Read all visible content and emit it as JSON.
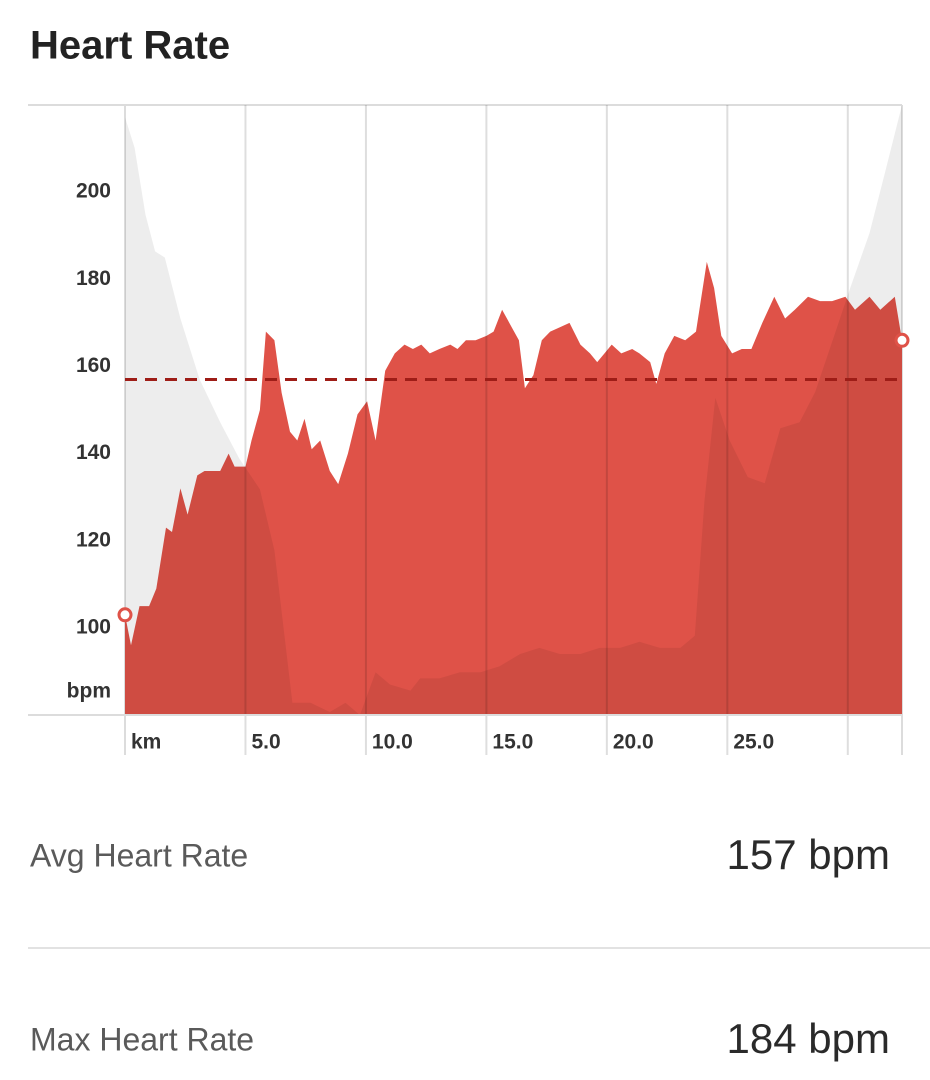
{
  "header": {
    "title": "Heart Rate"
  },
  "chart_data": {
    "type": "area",
    "y_label": "bpm",
    "x_label": "km",
    "xlim": [
      0,
      32.25
    ],
    "xticks": [
      {
        "value": 5,
        "label": "5.0"
      },
      {
        "value": 10,
        "label": "10.0"
      },
      {
        "value": 15,
        "label": "15.0"
      },
      {
        "value": 20,
        "label": "20.0"
      },
      {
        "value": 25,
        "label": "25.0"
      },
      {
        "value": 30,
        "label": null
      }
    ],
    "ylim": [
      80,
      220
    ],
    "yticks": [
      100,
      120,
      140,
      160,
      180,
      200
    ],
    "y2lim": [
      0,
      100
    ],
    "grid": "x",
    "average": 157,
    "average_color": "#9e1d17",
    "series": [
      {
        "color": "#df5248",
        "x": [
          0,
          0.25,
          0.6,
          1.0,
          1.3,
          1.7,
          1.95,
          2.3,
          2.6,
          3.0,
          3.3,
          3.95,
          4.3,
          4.55,
          5.0,
          5.25,
          5.6,
          5.85,
          6.2,
          6.5,
          6.85,
          7.15,
          7.45,
          7.75,
          8.1,
          8.5,
          8.85,
          9.25,
          9.65,
          10.05,
          10.4,
          10.8,
          11.2,
          11.6,
          11.95,
          12.3,
          12.65,
          13.05,
          13.5,
          13.8,
          14.15,
          14.55,
          15.0,
          15.3,
          15.65,
          16.05,
          16.35,
          16.6,
          16.95,
          17.3,
          17.65,
          18.05,
          18.45,
          18.9,
          19.3,
          19.6,
          19.9,
          20.2,
          20.6,
          21.05,
          21.35,
          21.8,
          22.05,
          22.4,
          22.8,
          23.25,
          23.7,
          24.15,
          24.45,
          24.75,
          25.2,
          25.6,
          26.0,
          26.45,
          26.95,
          27.4,
          27.8,
          28.35,
          28.85,
          29.35,
          29.9,
          30.3,
          30.9,
          31.35,
          31.95,
          32.25
        ],
        "values": [
          103,
          96,
          105,
          105,
          109,
          123,
          122,
          132,
          126,
          135,
          136,
          136,
          140,
          137,
          137,
          143,
          150,
          168,
          166,
          154,
          145,
          143,
          148,
          141,
          143,
          136,
          133,
          140,
          149,
          152,
          143,
          159,
          163,
          165,
          164,
          165,
          163,
          164,
          165,
          164,
          166,
          166,
          167,
          168,
          173,
          169,
          166,
          155,
          158,
          166,
          168,
          169,
          170,
          165,
          163,
          161,
          163,
          165,
          163,
          164,
          163,
          161,
          156,
          163,
          167,
          166,
          168,
          184,
          178,
          167,
          163,
          164,
          164,
          170,
          176,
          171,
          173,
          176,
          175,
          175,
          176,
          173,
          176,
          173,
          176,
          166
        ]
      },
      {
        "color": "rgba(0,0,0,0.07)",
        "axis": "y2",
        "x": [
          0,
          0.4,
          0.85,
          1.25,
          1.65,
          2.3,
          3.1,
          3.95,
          4.75,
          5.6,
          6.2,
          6.65,
          6.95,
          7.7,
          8.5,
          9.15,
          9.75,
          10.4,
          11.0,
          11.85,
          12.25,
          13.05,
          13.9,
          14.75,
          15.55,
          16.4,
          17.2,
          18.05,
          18.9,
          19.7,
          20.55,
          21.35,
          22.2,
          23.05,
          23.65,
          24.05,
          24.5,
          25.1,
          25.85,
          26.55,
          27.2,
          28.0,
          28.65,
          29.25,
          30.1,
          30.9,
          31.55,
          32.25
        ],
        "values": [
          98,
          93,
          82,
          76,
          75,
          65,
          55,
          48,
          42,
          37,
          27,
          12,
          2,
          2,
          0.5,
          2,
          0,
          7,
          5,
          4,
          6,
          6,
          7,
          7,
          8,
          10,
          11,
          10,
          10,
          11,
          11,
          12,
          11,
          11,
          13,
          35,
          52,
          45,
          39,
          38,
          47,
          48,
          53,
          60,
          70,
          79,
          89,
          100
        ]
      }
    ]
  },
  "stats": [
    {
      "label": "Avg Heart Rate",
      "value": "157 bpm"
    },
    {
      "label": "Max Heart Rate",
      "value": "184 bpm"
    }
  ]
}
